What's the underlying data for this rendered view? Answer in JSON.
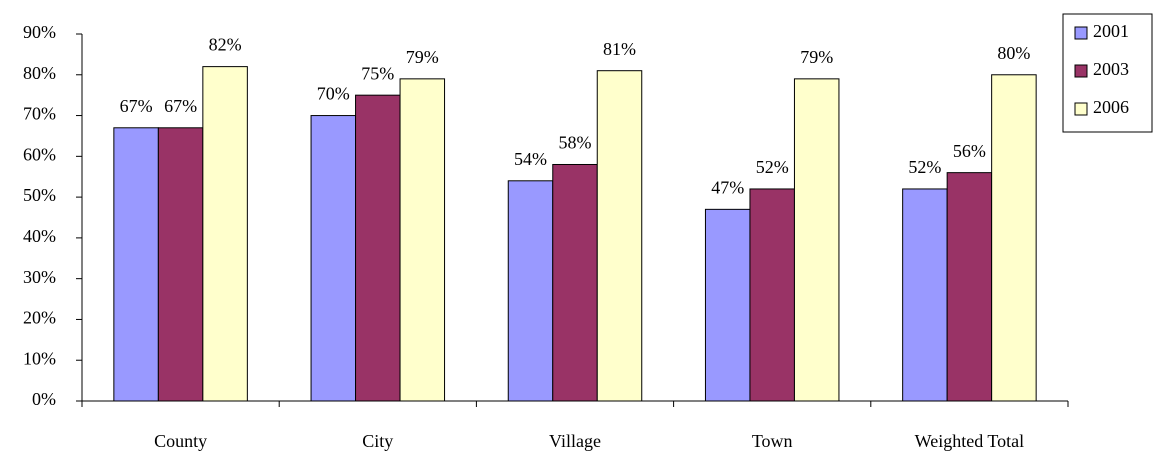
{
  "chart_data": {
    "type": "bar",
    "categories": [
      "County",
      "City",
      "Village",
      "Town",
      "Weighted Total"
    ],
    "series": [
      {
        "name": "2001",
        "color": "#9999ff",
        "values": [
          67,
          70,
          54,
          47,
          52
        ],
        "value_labels": [
          "67%",
          "70%",
          "54%",
          "47%",
          "52%"
        ]
      },
      {
        "name": "2003",
        "color": "#993366",
        "values": [
          67,
          75,
          58,
          52,
          56
        ],
        "value_labels": [
          "67%",
          "75%",
          "58%",
          "52%",
          "56%"
        ]
      },
      {
        "name": "2006",
        "color": "#ffffcc",
        "values": [
          82,
          79,
          81,
          79,
          80
        ],
        "value_labels": [
          "82%",
          "79%",
          "81%",
          "79%",
          "80%"
        ]
      }
    ],
    "ylim": [
      0,
      90
    ],
    "yticks": [
      {
        "value": 0,
        "label": "0%"
      },
      {
        "value": 10,
        "label": "10%"
      },
      {
        "value": 20,
        "label": "20%"
      },
      {
        "value": 30,
        "label": "30%"
      },
      {
        "value": 40,
        "label": "40%"
      },
      {
        "value": 50,
        "label": "50%"
      },
      {
        "value": 60,
        "label": "60%"
      },
      {
        "value": 70,
        "label": "70%"
      },
      {
        "value": 80,
        "label": "80%"
      },
      {
        "value": 90,
        "label": "90%"
      }
    ],
    "grid": false,
    "legend": "right"
  }
}
